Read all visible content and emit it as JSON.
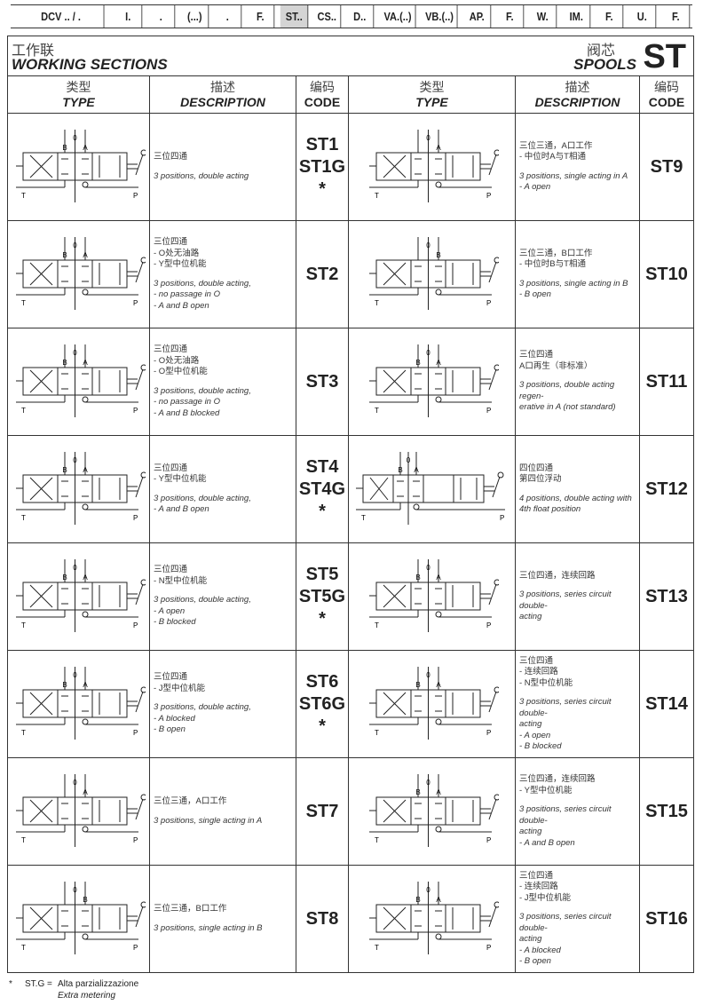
{
  "topbar": [
    {
      "label": "DCV .. / .",
      "w": 118
    },
    {
      "label": "I.",
      "w": 38
    },
    {
      "label": ".",
      "w": 38
    },
    {
      "label": "(...)",
      "w": 38
    },
    {
      "label": ".",
      "w": 38
    },
    {
      "label": "F.",
      "w": 38
    },
    {
      "label": "ST..",
      "w": 38,
      "selected": true
    },
    {
      "label": "CS..",
      "w": 38
    },
    {
      "label": "D..",
      "w": 38
    },
    {
      "label": "VA.(..)",
      "w": 48
    },
    {
      "label": "VB.(..)",
      "w": 48
    },
    {
      "label": "AP.",
      "w": 38
    },
    {
      "label": "F.",
      "w": 38
    },
    {
      "label": "W.",
      "w": 38
    },
    {
      "label": "IM.",
      "w": 38
    },
    {
      "label": "F.",
      "w": 38
    },
    {
      "label": "U.",
      "w": 38
    },
    {
      "label": "F.",
      "w": 38
    }
  ],
  "header": {
    "title_cn": "工作联",
    "title_en": "WORKING SECTIONS",
    "right_cn": "阀芯",
    "right_en": "SPOOLS",
    "code": "ST"
  },
  "columns": {
    "type_cn": "类型",
    "type_en": "TYPE",
    "desc_cn": "描述",
    "desc_en": "DESCRIPTION",
    "code_cn": "编码",
    "code_en": "CODE"
  },
  "port_labels": {
    "t": "T",
    "p": "P"
  },
  "rows": [
    {
      "left": {
        "ports": [
          "B",
          "0",
          "A"
        ],
        "boxes": 3,
        "cn": [
          "三位四通"
        ],
        "en": [
          "3 positions, double acting"
        ],
        "code": [
          "ST1",
          "ST1G",
          "*"
        ]
      },
      "right": {
        "ports": [
          "0",
          "A"
        ],
        "boxes": 3,
        "cn": [
          "三位三通，A口工作",
          "- 中位时A与T相通"
        ],
        "en": [
          "3 positions, single acting in A",
          "- A open"
        ],
        "code": [
          "ST9"
        ]
      }
    },
    {
      "left": {
        "ports": [
          "B",
          "0",
          "A"
        ],
        "boxes": 3,
        "cn": [
          "三位四通",
          "- O处无油路",
          "- Y型中位机能"
        ],
        "en": [
          "3 positions, double acting,",
          "- no passage in O",
          "- A and B open"
        ],
        "code": [
          "ST2"
        ]
      },
      "right": {
        "ports": [
          "0",
          "B"
        ],
        "boxes": 3,
        "cn": [
          "三位三通，B口工作",
          "- 中位时B与T相通"
        ],
        "en": [
          "3 positions, single acting in B",
          "- B open"
        ],
        "code": [
          "ST10"
        ]
      }
    },
    {
      "left": {
        "ports": [
          "B",
          "0",
          "A"
        ],
        "boxes": 3,
        "cn": [
          "三位四通",
          "- O处无油路",
          "- O型中位机能"
        ],
        "en": [
          "3 positions, double acting,",
          "- no passage in O",
          "- A and B blocked"
        ],
        "code": [
          "ST3"
        ]
      },
      "right": {
        "ports": [
          "B",
          "0",
          "A"
        ],
        "boxes": 3,
        "cn": [
          "三位四通",
          "A口再生（非标准）"
        ],
        "en": [
          "3 positions, double acting regen-",
          "erative in A (not standard)"
        ],
        "code": [
          "ST11"
        ]
      }
    },
    {
      "left": {
        "ports": [
          "B",
          "0",
          "A"
        ],
        "boxes": 3,
        "cn": [
          "三位四通",
          "- Y型中位机能"
        ],
        "en": [
          "3 positions, double acting,",
          "- A and B open"
        ],
        "code": [
          "ST4",
          "ST4G",
          "*"
        ]
      },
      "right": {
        "ports": [
          "B",
          "0",
          "A"
        ],
        "boxes": 4,
        "cn": [
          "四位四通",
          "第四位浮动"
        ],
        "en": [
          "4 positions, double acting with",
          "4th float position"
        ],
        "code": [
          "ST12"
        ]
      }
    },
    {
      "left": {
        "ports": [
          "B",
          "0",
          "A"
        ],
        "boxes": 3,
        "cn": [
          "三位四通",
          "- N型中位机能"
        ],
        "en": [
          "3 positions, double acting,",
          "- A open",
          "- B blocked"
        ],
        "code": [
          "ST5",
          "ST5G",
          "*"
        ]
      },
      "right": {
        "ports": [
          "B",
          "0",
          "A"
        ],
        "boxes": 3,
        "cn": [
          "三位四通，连续回路"
        ],
        "en": [
          "3 positions, series circuit double-",
          "acting"
        ],
        "code": [
          "ST13"
        ]
      }
    },
    {
      "left": {
        "ports": [
          "B",
          "0",
          "A"
        ],
        "boxes": 3,
        "cn": [
          "三位四通",
          "- J型中位机能"
        ],
        "en": [
          "3 positions, double acting,",
          "- A blocked",
          "- B open"
        ],
        "code": [
          "ST6",
          "ST6G",
          "*"
        ]
      },
      "right": {
        "ports": [
          "B",
          "0",
          "A"
        ],
        "boxes": 3,
        "cn": [
          "三位四通",
          "- 连续回路",
          "- N型中位机能"
        ],
        "en": [
          "3 positions, series circuit double-",
          "acting",
          "- A open",
          "- B blocked"
        ],
        "code": [
          "ST14"
        ]
      }
    },
    {
      "left": {
        "ports": [
          "0",
          "A"
        ],
        "boxes": 3,
        "cn": [
          "三位三通，A口工作"
        ],
        "en": [
          "3 positions, single acting in A"
        ],
        "code": [
          "ST7"
        ]
      },
      "right": {
        "ports": [
          "B",
          "0",
          "A"
        ],
        "boxes": 3,
        "cn": [
          "三位四通，连续回路",
          "- Y型中位机能"
        ],
        "en": [
          "3 positions, series circuit double-",
          "acting",
          "- A and B open"
        ],
        "code": [
          "ST15"
        ]
      }
    },
    {
      "left": {
        "ports": [
          "0",
          "B"
        ],
        "boxes": 3,
        "cn": [
          "三位三通，B口工作"
        ],
        "en": [
          "3 positions, single acting in B"
        ],
        "code": [
          "ST8"
        ]
      },
      "right": {
        "ports": [
          "B",
          "0",
          "A"
        ],
        "boxes": 3,
        "cn": [
          "三位四通",
          "- 连续回路",
          "- J型中位机能"
        ],
        "en": [
          "3 positions, series circuit double-",
          "acting",
          "- A blocked",
          "- B open"
        ],
        "code": [
          "ST16"
        ]
      }
    }
  ],
  "footer": {
    "star": "*",
    "key": "ST.G =",
    "it": "Alta parzializzazione",
    "en": "Extra metering"
  }
}
